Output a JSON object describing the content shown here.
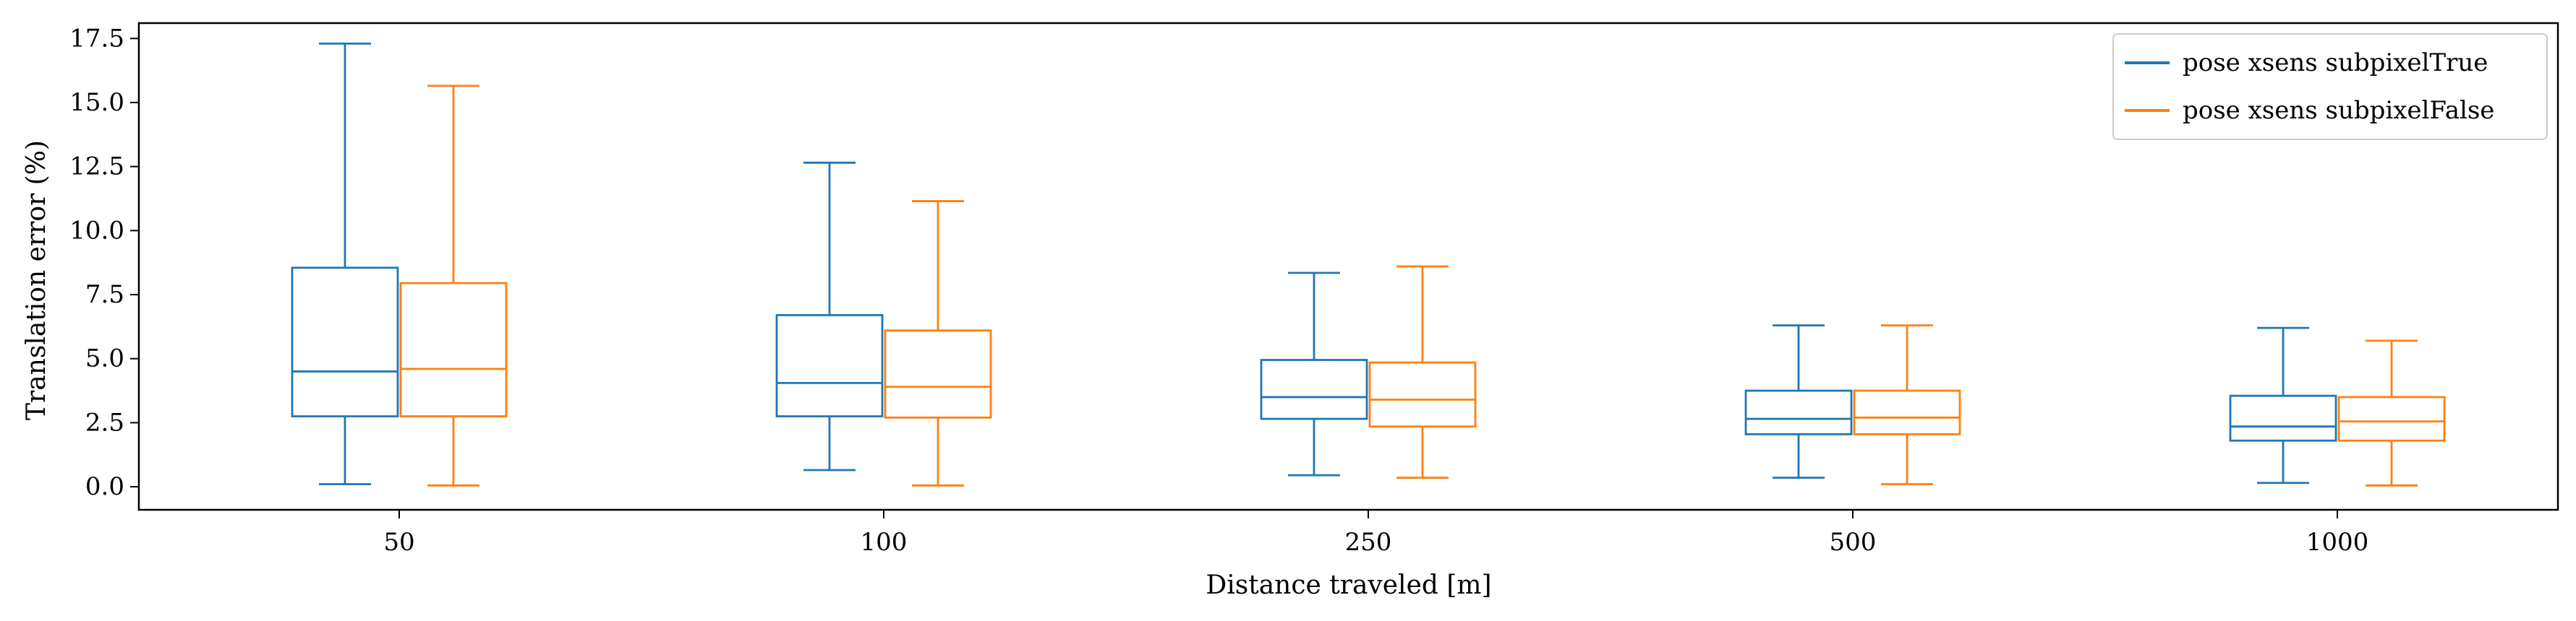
{
  "chart_data": {
    "type": "boxplot",
    "xlabel": "Distance traveled [m]",
    "ylabel": "Translation error (%)",
    "categories": [
      "50",
      "100",
      "250",
      "500",
      "1000"
    ],
    "ylim": [
      -0.9,
      18.1
    ],
    "yticks": [
      0.0,
      2.5,
      5.0,
      7.5,
      10.0,
      12.5,
      15.0,
      17.5
    ],
    "ytick_labels": [
      "0.0",
      "2.5",
      "5.0",
      "7.5",
      "10.0",
      "12.5",
      "15.0",
      "17.5"
    ],
    "grid": false,
    "legend_position": "top-right",
    "series": [
      {
        "name": "pose xsens subpixelTrue",
        "color": "#1f77b4",
        "boxes": [
          {
            "whisker_low": 0.1,
            "q1": 2.75,
            "median": 4.5,
            "q3": 8.55,
            "whisker_high": 17.3
          },
          {
            "whisker_low": 0.65,
            "q1": 2.75,
            "median": 4.05,
            "q3": 6.7,
            "whisker_high": 12.65
          },
          {
            "whisker_low": 0.45,
            "q1": 2.65,
            "median": 3.5,
            "q3": 4.95,
            "whisker_high": 8.35
          },
          {
            "whisker_low": 0.35,
            "q1": 2.05,
            "median": 2.65,
            "q3": 3.75,
            "whisker_high": 6.3
          },
          {
            "whisker_low": 0.15,
            "q1": 1.8,
            "median": 2.35,
            "q3": 3.55,
            "whisker_high": 6.2
          }
        ]
      },
      {
        "name": "pose xsens subpixelFalse",
        "color": "#ff7f0e",
        "boxes": [
          {
            "whisker_low": 0.05,
            "q1": 2.75,
            "median": 4.6,
            "q3": 7.95,
            "whisker_high": 15.65
          },
          {
            "whisker_low": 0.05,
            "q1": 2.7,
            "median": 3.9,
            "q3": 6.1,
            "whisker_high": 11.15
          },
          {
            "whisker_low": 0.35,
            "q1": 2.35,
            "median": 3.4,
            "q3": 4.85,
            "whisker_high": 8.6
          },
          {
            "whisker_low": 0.1,
            "q1": 2.05,
            "median": 2.7,
            "q3": 3.75,
            "whisker_high": 6.3
          },
          {
            "whisker_low": 0.05,
            "q1": 1.8,
            "median": 2.55,
            "q3": 3.5,
            "whisker_high": 5.7
          }
        ]
      }
    ]
  }
}
